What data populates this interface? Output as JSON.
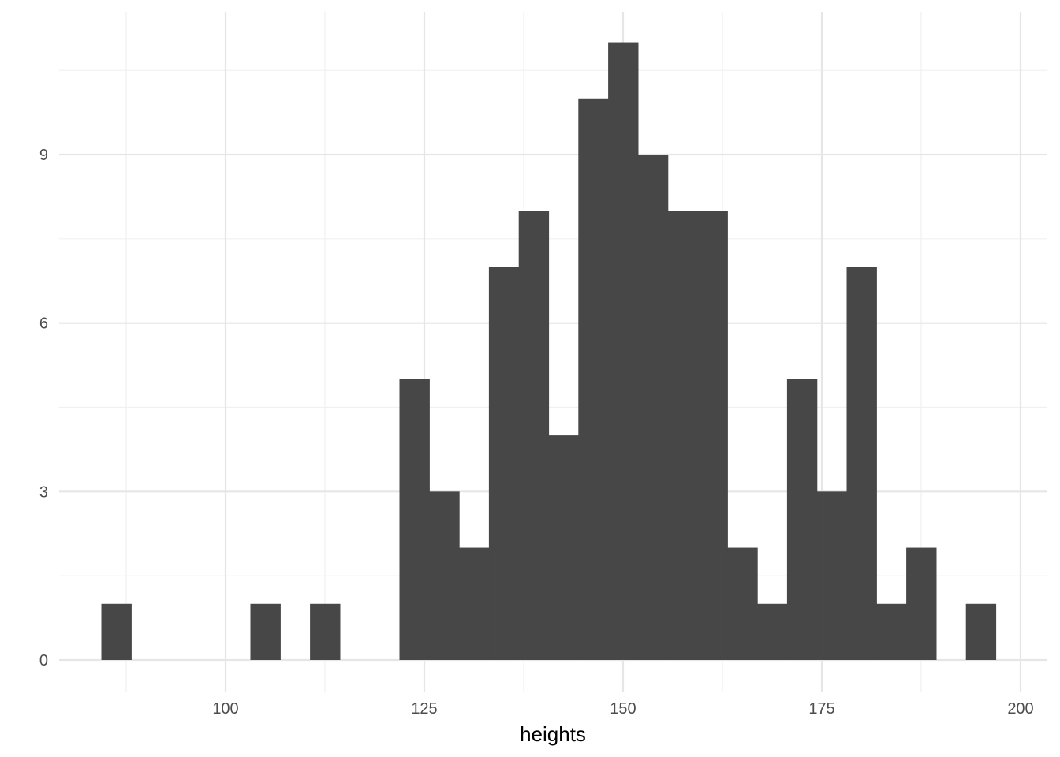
{
  "chart_data": {
    "type": "bar",
    "subtype": "histogram",
    "title": "",
    "xlabel": "heights",
    "ylabel": "",
    "bin_width": 3.75,
    "bins_start": 84.375,
    "counts": [
      1,
      0,
      0,
      0,
      0,
      1,
      0,
      1,
      0,
      0,
      5,
      3,
      2,
      7,
      8,
      4,
      10,
      11,
      9,
      8,
      8,
      2,
      1,
      5,
      3,
      7,
      1,
      2,
      0,
      1
    ],
    "xlim": [
      80,
      202
    ],
    "ylim": [
      -0.8,
      11.6
    ],
    "x_ticks": [
      100,
      125,
      150,
      175,
      200
    ],
    "y_ticks": [
      0,
      3,
      6,
      9
    ],
    "grid": true,
    "bar_color": "#474747",
    "grid_major_color": "#e6e6e6",
    "grid_minor_color": "#f0f0f0"
  }
}
